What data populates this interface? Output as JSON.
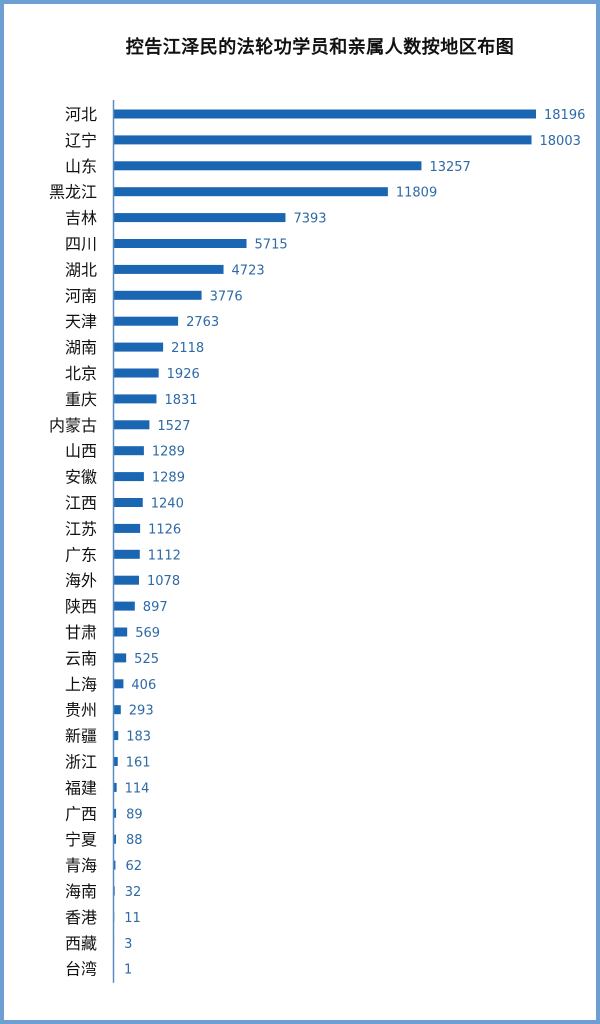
{
  "chart_data": {
    "type": "bar",
    "orientation": "horizontal",
    "title": "控告江泽民的法轮功学员和亲属人数按地区布图",
    "categories": [
      "河北",
      "辽宁",
      "山东",
      "黑龙江",
      "吉林",
      "四川",
      "湖北",
      "河南",
      "天津",
      "湖南",
      "北京",
      "重庆",
      "内蒙古",
      "山西",
      "安徽",
      "江西",
      "江苏",
      "广东",
      "海外",
      "陕西",
      "甘肃",
      "云南",
      "上海",
      "贵州",
      "新疆",
      "浙江",
      "福建",
      "广西",
      "宁夏",
      "青海",
      "海南",
      "香港",
      "西藏",
      "台湾"
    ],
    "values": [
      18196,
      18003,
      13257,
      11809,
      7393,
      5715,
      4723,
      3776,
      2763,
      2118,
      1926,
      1831,
      1527,
      1289,
      1289,
      1240,
      1126,
      1112,
      1078,
      897,
      569,
      525,
      406,
      293,
      183,
      161,
      114,
      89,
      88,
      62,
      32,
      11,
      3,
      1
    ],
    "xlim": [
      0,
      18196
    ],
    "grid": false,
    "data_labels": true,
    "colors": {
      "bar": "#1a66b3",
      "label": "#2e6aa5",
      "axis": "#5b8cc0",
      "border": "#6d9fd3"
    }
  }
}
